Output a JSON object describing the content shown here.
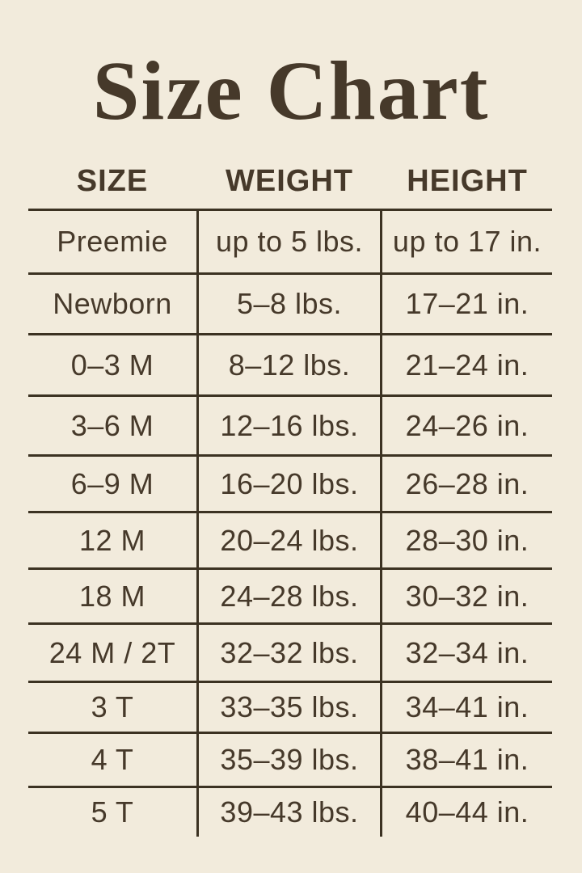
{
  "page": {
    "title": "Size Chart"
  },
  "colors": {
    "background": "#f2ebdc",
    "text": "#46392a",
    "line": "#3c3222"
  },
  "table": {
    "headers": [
      "SIZE",
      "WEIGHT",
      "HEIGHT"
    ],
    "rows": [
      {
        "size": "Preemie",
        "weight": "up to 5 lbs.",
        "height": "up to 17 in."
      },
      {
        "size": "Newborn",
        "weight": "5–8 lbs.",
        "height": "17–21 in."
      },
      {
        "size": "0–3 M",
        "weight": "8–12 lbs.",
        "height": "21–24 in."
      },
      {
        "size": "3–6 M",
        "weight": "12–16 lbs.",
        "height": "24–26 in."
      },
      {
        "size": "6–9 M",
        "weight": "16–20 lbs.",
        "height": "26–28 in."
      },
      {
        "size": "12 M",
        "weight": "20–24 lbs.",
        "height": "28–30 in."
      },
      {
        "size": "18 M",
        "weight": "24–28 lbs.",
        "height": "30–32 in."
      },
      {
        "size": "24 M / 2T",
        "weight": "32–32 lbs.",
        "height": "32–34 in."
      },
      {
        "size": "3 T",
        "weight": "33–35 lbs.",
        "height": "34–41 in."
      },
      {
        "size": "4 T",
        "weight": "35–39 lbs.",
        "height": "38–41 in."
      },
      {
        "size": "5 T",
        "weight": "39–43 lbs.",
        "height": "40–44 in."
      }
    ]
  },
  "chart_data": {
    "type": "table",
    "title": "Size Chart",
    "columns": [
      "SIZE",
      "WEIGHT",
      "HEIGHT"
    ],
    "rows": [
      [
        "Preemie",
        "up to 5 lbs.",
        "up to 17 in."
      ],
      [
        "Newborn",
        "5–8 lbs.",
        "17–21 in."
      ],
      [
        "0–3 M",
        "8–12 lbs.",
        "21–24 in."
      ],
      [
        "3–6 M",
        "12–16 lbs.",
        "24–26 in."
      ],
      [
        "6–9 M",
        "16–20 lbs.",
        "26–28 in."
      ],
      [
        "12 M",
        "20–24 lbs.",
        "28–30 in."
      ],
      [
        "18 M",
        "24–28 lbs.",
        "30–32 in."
      ],
      [
        "24 M / 2T",
        "32–32 lbs.",
        "32–34 in."
      ],
      [
        "3 T",
        "33–35 lbs.",
        "34–41 in."
      ],
      [
        "4 T",
        "35–39 lbs.",
        "38–41 in."
      ],
      [
        "5 T",
        "39–43 lbs.",
        "40–44 in."
      ]
    ]
  }
}
